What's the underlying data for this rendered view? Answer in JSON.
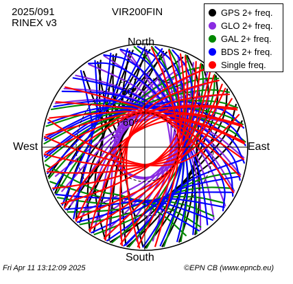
{
  "header": {
    "date_code": "2025/091",
    "rinex": "RINEX v3",
    "station": "VIR200FIN"
  },
  "footer": {
    "timestamp": "Fri Apr 11 13:12:09 2025",
    "credit": "©EPN CB (www.epncb.eu)"
  },
  "chart_data": {
    "type": "scatter",
    "subtype": "polar-skyplot",
    "title": "VIR200FIN",
    "directions": {
      "north": "North",
      "south": "South",
      "east": "East",
      "west": "West"
    },
    "elevation_rings": [
      {
        "elevation_deg": 30,
        "label": "30°"
      },
      {
        "elevation_deg": 60,
        "label": "60°"
      }
    ],
    "elevation_range_deg": [
      0,
      90
    ],
    "grid": true,
    "legend_placement": "top-right",
    "legend": [
      {
        "name": "GPS 2+ freq.",
        "color": "#000000"
      },
      {
        "name": "GLO 2+ freq.",
        "color": "#8a2be2"
      },
      {
        "name": "GAL 2+ freq.",
        "color": "#008800"
      },
      {
        "name": "BDS 2+ freq.",
        "color": "#0000ff"
      },
      {
        "name": "Single freq.",
        "color": "#ff0000"
      }
    ],
    "series": [
      {
        "name": "GPS 2+ freq.",
        "color": "#000000",
        "tracks": [
          [
            [
              150,
              2
            ],
            [
              130,
              25
            ],
            [
              100,
              45
            ],
            [
              70,
              40
            ],
            [
              40,
              15
            ],
            [
              25,
              2
            ]
          ],
          [
            [
              200,
              2
            ],
            [
              230,
              30
            ],
            [
              270,
              55
            ],
            [
              310,
              35
            ],
            [
              330,
              5
            ]
          ],
          [
            [
              175,
              3
            ],
            [
              185,
              35
            ],
            [
              210,
              60
            ],
            [
              260,
              70
            ],
            [
              300,
              40
            ],
            [
              315,
              5
            ]
          ]
        ]
      },
      {
        "name": "GLO 2+ freq.",
        "color": "#8a2be2",
        "tracks": [
          [
            [
              20,
              5
            ],
            [
              350,
              45
            ],
            [
              310,
              65
            ],
            [
              250,
              62
            ],
            [
              210,
              40
            ],
            [
              195,
              8
            ]
          ],
          [
            [
              340,
              5
            ],
            [
              10,
              45
            ],
            [
              50,
              65
            ],
            [
              110,
              62
            ],
            [
              150,
              40
            ],
            [
              165,
              8
            ]
          ],
          [
            [
              0,
              20
            ],
            [
              60,
              58
            ],
            [
              120,
              60
            ],
            [
              180,
              58
            ],
            [
              240,
              60
            ],
            [
              300,
              58
            ],
            [
              350,
              25
            ]
          ],
          [
            [
              280,
              3
            ],
            [
              300,
              30
            ],
            [
              330,
              50
            ],
            [
              20,
              52
            ],
            [
              60,
              30
            ],
            [
              80,
              3
            ]
          ]
        ]
      },
      {
        "name": "GAL 2+ freq.",
        "color": "#008800",
        "tracks": [
          [
            [
              135,
              2
            ],
            [
              110,
              35
            ],
            [
              70,
              55
            ],
            [
              20,
              45
            ],
            [
              350,
              15
            ],
            [
              340,
              2
            ]
          ],
          [
            [
              225,
              2
            ],
            [
              250,
              35
            ],
            [
              290,
              55
            ],
            [
              340,
              45
            ],
            [
              10,
              15
            ],
            [
              20,
              2
            ]
          ],
          [
            [
              190,
              2
            ],
            [
              160,
              30
            ],
            [
              130,
              45
            ],
            [
              95,
              30
            ],
            [
              85,
              5
            ]
          ]
        ]
      },
      {
        "name": "BDS 2+ freq.",
        "color": "#0000ff",
        "tracks": [
          [
            [
              120,
              3
            ],
            [
              100,
              30
            ],
            [
              70,
              50
            ],
            [
              30,
              55
            ],
            [
              350,
              40
            ],
            [
              320,
              12
            ],
            [
              305,
              2
            ]
          ],
          [
            [
              240,
              3
            ],
            [
              260,
              30
            ],
            [
              290,
              50
            ],
            [
              330,
              55
            ],
            [
              10,
              40
            ],
            [
              40,
              12
            ],
            [
              55,
              2
            ]
          ],
          [
            [
              165,
              2
            ],
            [
              150,
              25
            ],
            [
              125,
              42
            ],
            [
              100,
              42
            ],
            [
              80,
              25
            ],
            [
              70,
              3
            ]
          ],
          [
            [
              195,
              2
            ],
            [
              210,
              25
            ],
            [
              235,
              42
            ],
            [
              260,
              42
            ],
            [
              280,
              25
            ],
            [
              290,
              3
            ]
          ]
        ]
      },
      {
        "name": "Single freq.",
        "color": "#ff0000",
        "tracks": [
          [
            [
              10,
              3
            ],
            [
              340,
              40
            ],
            [
              280,
              70
            ],
            [
              180,
              55
            ],
            [
              160,
              20
            ],
            [
              155,
              2
            ]
          ],
          [
            [
              350,
              3
            ],
            [
              20,
              40
            ],
            [
              80,
              70
            ],
            [
              180,
              55
            ],
            [
              200,
              20
            ],
            [
              205,
              2
            ]
          ],
          [
            [
              140,
              3
            ],
            [
              120,
              40
            ],
            [
              60,
              58
            ],
            [
              350,
              35
            ],
            [
              330,
              3
            ]
          ],
          [
            [
              220,
              3
            ],
            [
              240,
              40
            ],
            [
              300,
              58
            ],
            [
              10,
              35
            ],
            [
              30,
              3
            ]
          ]
        ]
      }
    ]
  }
}
